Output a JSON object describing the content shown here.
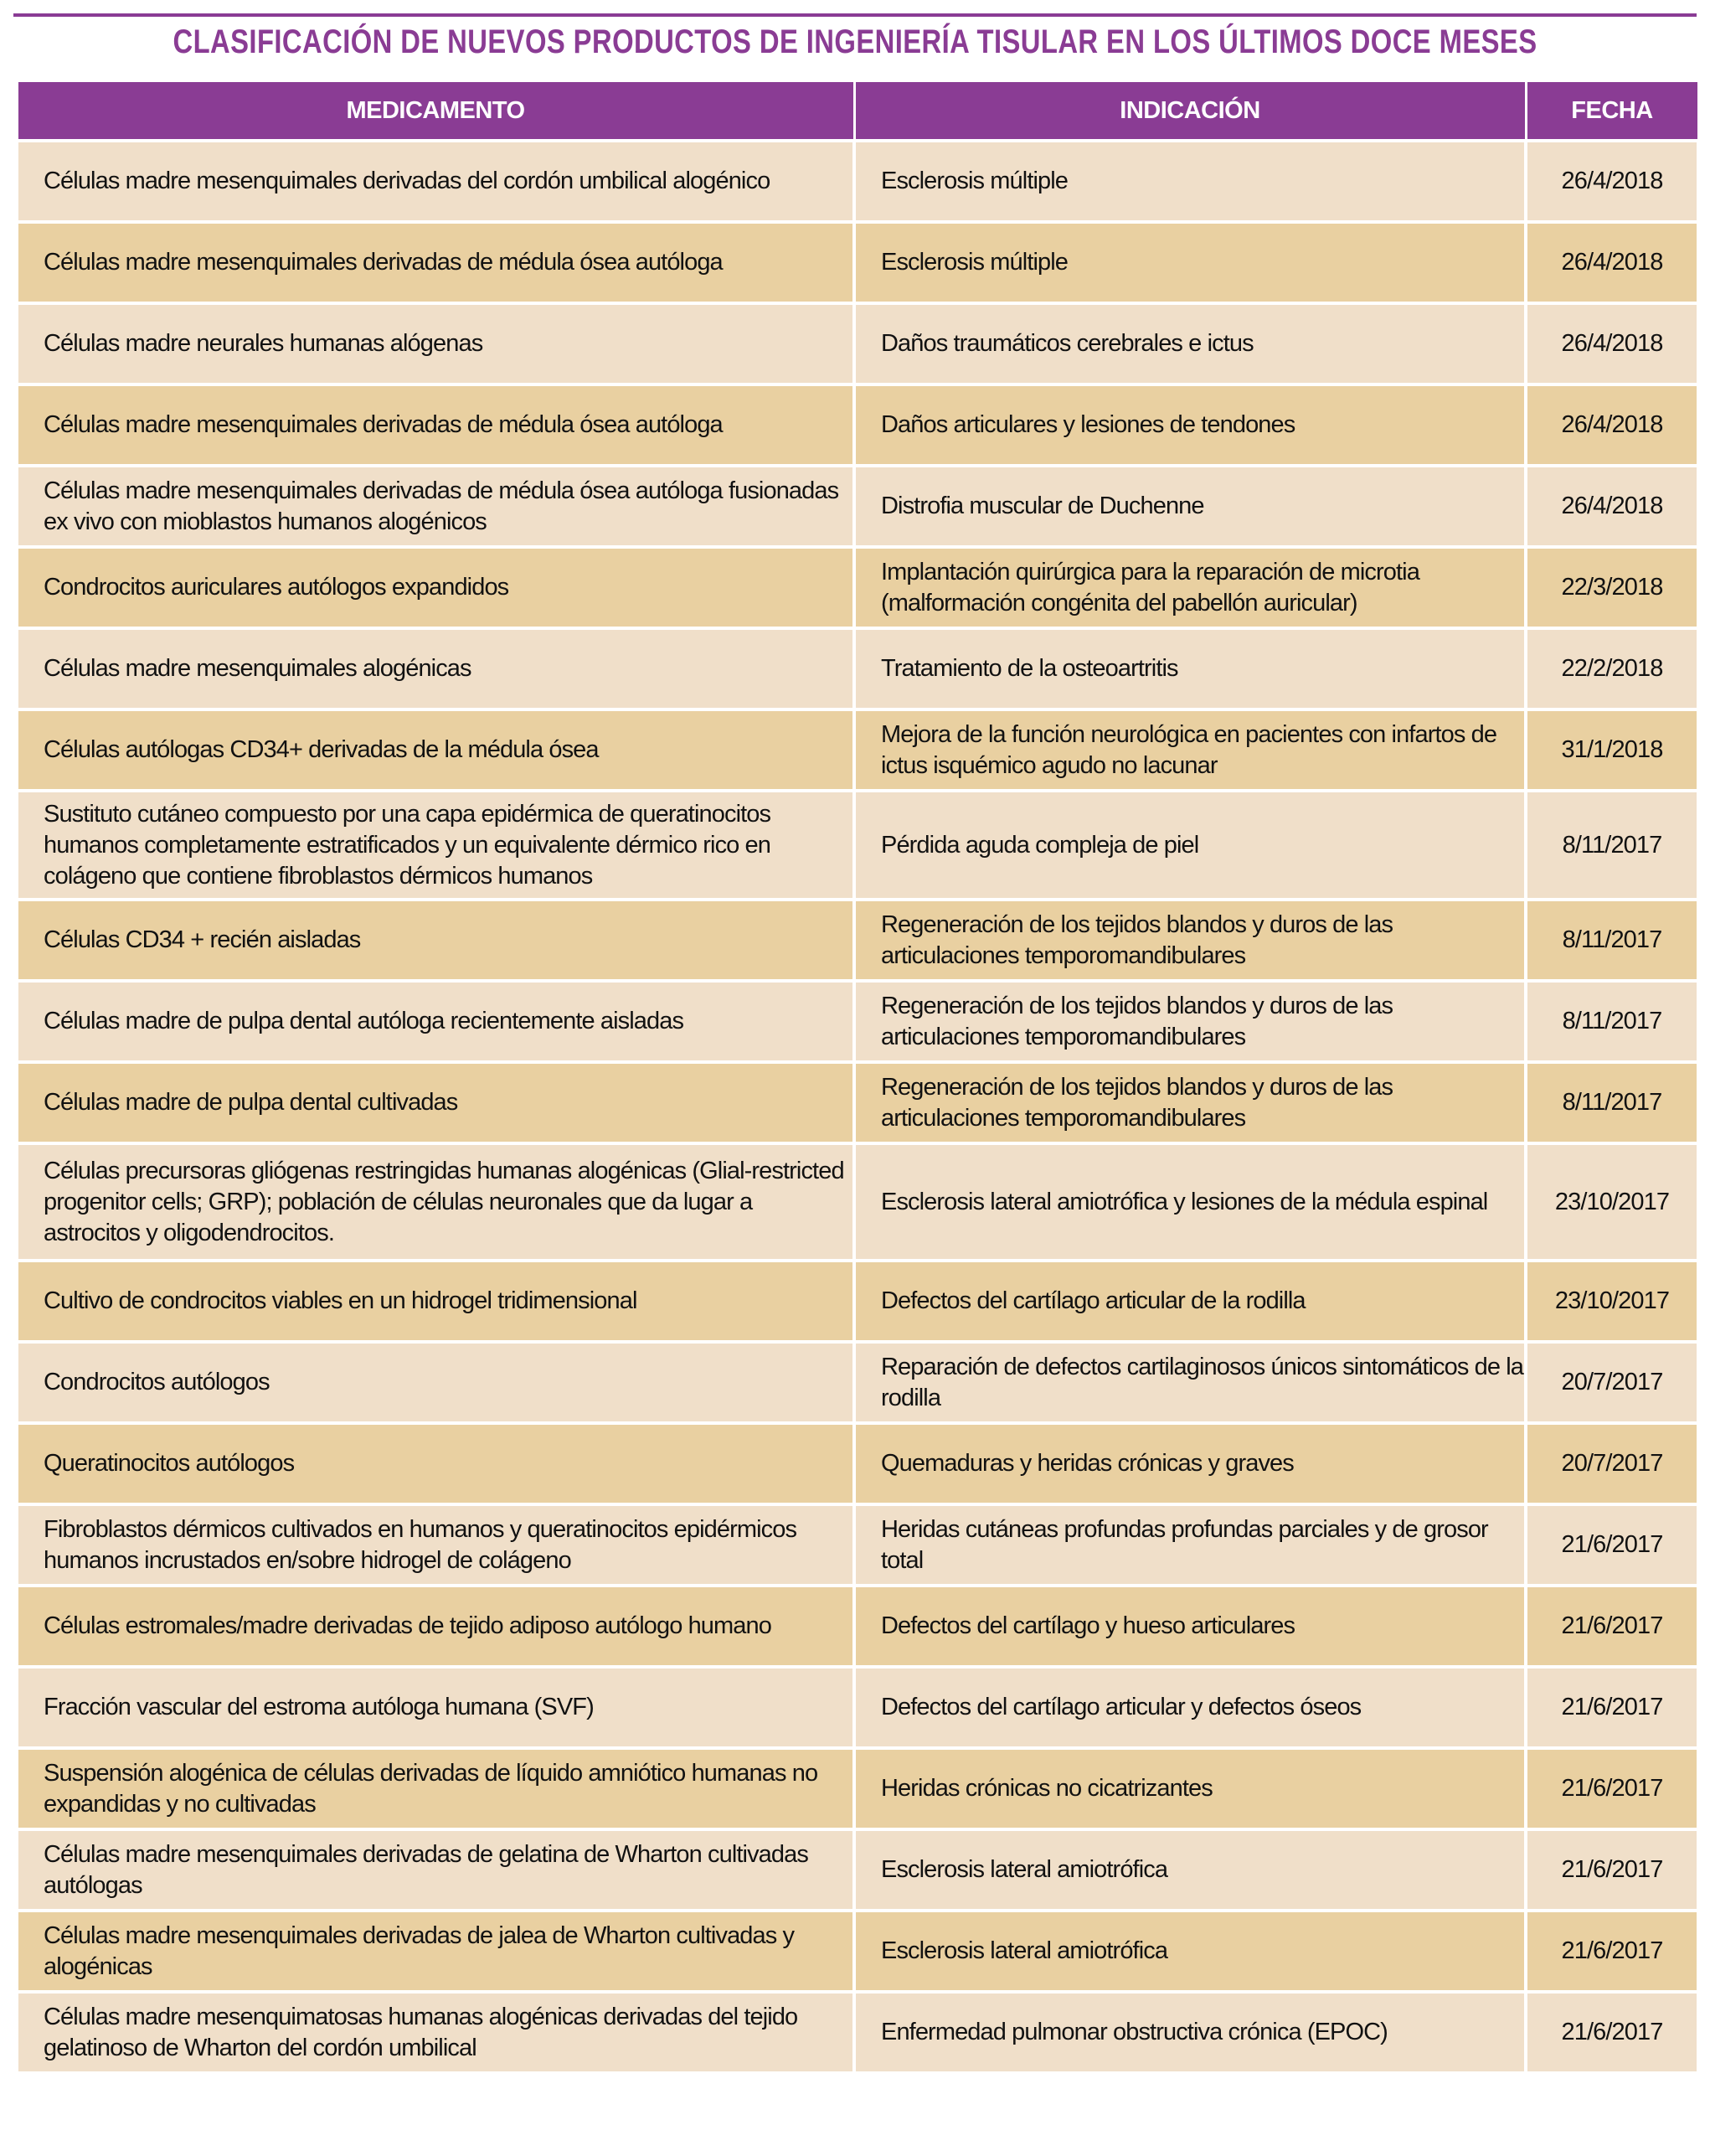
{
  "title": "CLASIFICACIÓN DE NUEVOS PRODUCTOS DE INGENIERÍA TISULAR EN LOS ÚLTIMOS DOCE MESES",
  "colors": {
    "header": "#8a3c94",
    "row_light": "#f0dfc9",
    "row_dark": "#e9d0a1"
  },
  "headers": [
    "MEDICAMENTO",
    "INDICACIÓN",
    "FECHA"
  ],
  "rows": [
    {
      "medicamento": "Células madre mesenquimales derivadas del cordón umbilical alogénico",
      "indicacion": "Esclerosis múltiple",
      "fecha": "26/4/2018"
    },
    {
      "medicamento": "Células madre mesenquimales derivadas de médula ósea autóloga",
      "indicacion": "Esclerosis múltiple",
      "fecha": "26/4/2018"
    },
    {
      "medicamento": "Células madre neurales humanas alógenas",
      "indicacion": "Daños traumáticos cerebrales e ictus",
      "fecha": "26/4/2018"
    },
    {
      "medicamento": "Células madre mesenquimales derivadas de médula ósea autóloga",
      "indicacion": "Daños articulares y lesiones de tendones",
      "fecha": "26/4/2018"
    },
    {
      "medicamento": "Células madre mesenquimales derivadas de médula ósea autóloga fusionadas ex vivo con mioblastos humanos alogénicos",
      "indicacion": "Distrofia muscular de Duchenne",
      "fecha": "26/4/2018"
    },
    {
      "medicamento": "Condrocitos auriculares autólogos expandidos",
      "indicacion": "Implantación quirúrgica para la reparación de microtia (malformación congénita del pabellón auricular)",
      "fecha": "22/3/2018"
    },
    {
      "medicamento": "Células madre mesenquimales alogénicas",
      "indicacion": "Tratamiento de la osteoartritis",
      "fecha": "22/2/2018"
    },
    {
      "medicamento": "Células autólogas CD34+ derivadas de la médula ósea",
      "indicacion": "Mejora de la función neurológica en pacientes con infartos de ictus isquémico agudo no lacunar",
      "fecha": "31/1/2018"
    },
    {
      "medicamento": "Sustituto cutáneo compuesto por una capa epidérmica de queratinocitos humanos completamente estratificados y un equivalente dérmico rico en colágeno que contiene fibroblastos dérmicos humanos",
      "indicacion": "Pérdida aguda compleja de piel",
      "fecha": "8/11/2017"
    },
    {
      "medicamento": "Células CD34 + recién aisladas",
      "indicacion": "Regeneración de los tejidos blandos y duros de las articulaciones temporomandibulares",
      "fecha": "8/11/2017"
    },
    {
      "medicamento": "Células madre de pulpa dental autóloga recientemente aisladas",
      "indicacion": "Regeneración de los tejidos blandos y duros de las articulaciones temporomandibulares",
      "fecha": "8/11/2017"
    },
    {
      "medicamento": "Células madre de pulpa dental cultivadas",
      "indicacion": "Regeneración de los tejidos blandos y duros de las articulaciones temporomandibulares",
      "fecha": "8/11/2017"
    },
    {
      "medicamento": "Células precursoras gliógenas restringidas humanas alogénicas (Glial-restricted progenitor cells; GRP); población de células neuronales que da lugar a astrocitos y oligodendrocitos.",
      "indicacion": "Esclerosis lateral amiotrófica y lesiones de la médula espinal",
      "fecha": "23/10/2017"
    },
    {
      "medicamento": "Cultivo de condrocitos viables en un hidrogel tridimensional",
      "indicacion": "Defectos del cartílago articular de la rodilla",
      "fecha": "23/10/2017"
    },
    {
      "medicamento": "Condrocitos autólogos",
      "indicacion": "Reparación de defectos cartilaginosos únicos sintomáticos de la rodilla",
      "fecha": "20/7/2017"
    },
    {
      "medicamento": "Queratinocitos autólogos",
      "indicacion": "Quemaduras y heridas crónicas y graves",
      "fecha": "20/7/2017"
    },
    {
      "medicamento": "Fibroblastos dérmicos cultivados en humanos y queratinocitos epidérmicos humanos incrustados en/sobre hidrogel de colágeno",
      "indicacion": "Heridas cutáneas profundas profundas parciales y de grosor total",
      "fecha": "21/6/2017"
    },
    {
      "medicamento": "Células estromales/madre derivadas de tejido adiposo autólogo humano",
      "indicacion": "Defectos del cartílago y hueso articulares",
      "fecha": "21/6/2017"
    },
    {
      "medicamento": "Fracción vascular del estroma autóloga humana (SVF)",
      "indicacion": "Defectos del cartílago articular y defectos óseos",
      "fecha": "21/6/2017"
    },
    {
      "medicamento": "Suspensión alogénica de células derivadas de líquido amniótico humanas no expandidas y no cultivadas",
      "indicacion": "Heridas crónicas no cicatrizantes",
      "fecha": "21/6/2017"
    },
    {
      "medicamento": "Células madre mesenquimales derivadas de gelatina de Wharton cultivadas autólogas",
      "indicacion": "Esclerosis lateral amiotrófica",
      "fecha": "21/6/2017"
    },
    {
      "medicamento": "Células madre mesenquimales derivadas de jalea de Wharton cultivadas y alogénicas",
      "indicacion": "Esclerosis lateral amiotrófica",
      "fecha": "21/6/2017"
    },
    {
      "medicamento": "Células madre mesenquimatosas humanas alogénicas derivadas del tejido gelatinoso de Wharton del cordón umbilical",
      "indicacion": "Enfermedad pulmonar obstructiva crónica (EPOC)",
      "fecha": "21/6/2017"
    }
  ]
}
